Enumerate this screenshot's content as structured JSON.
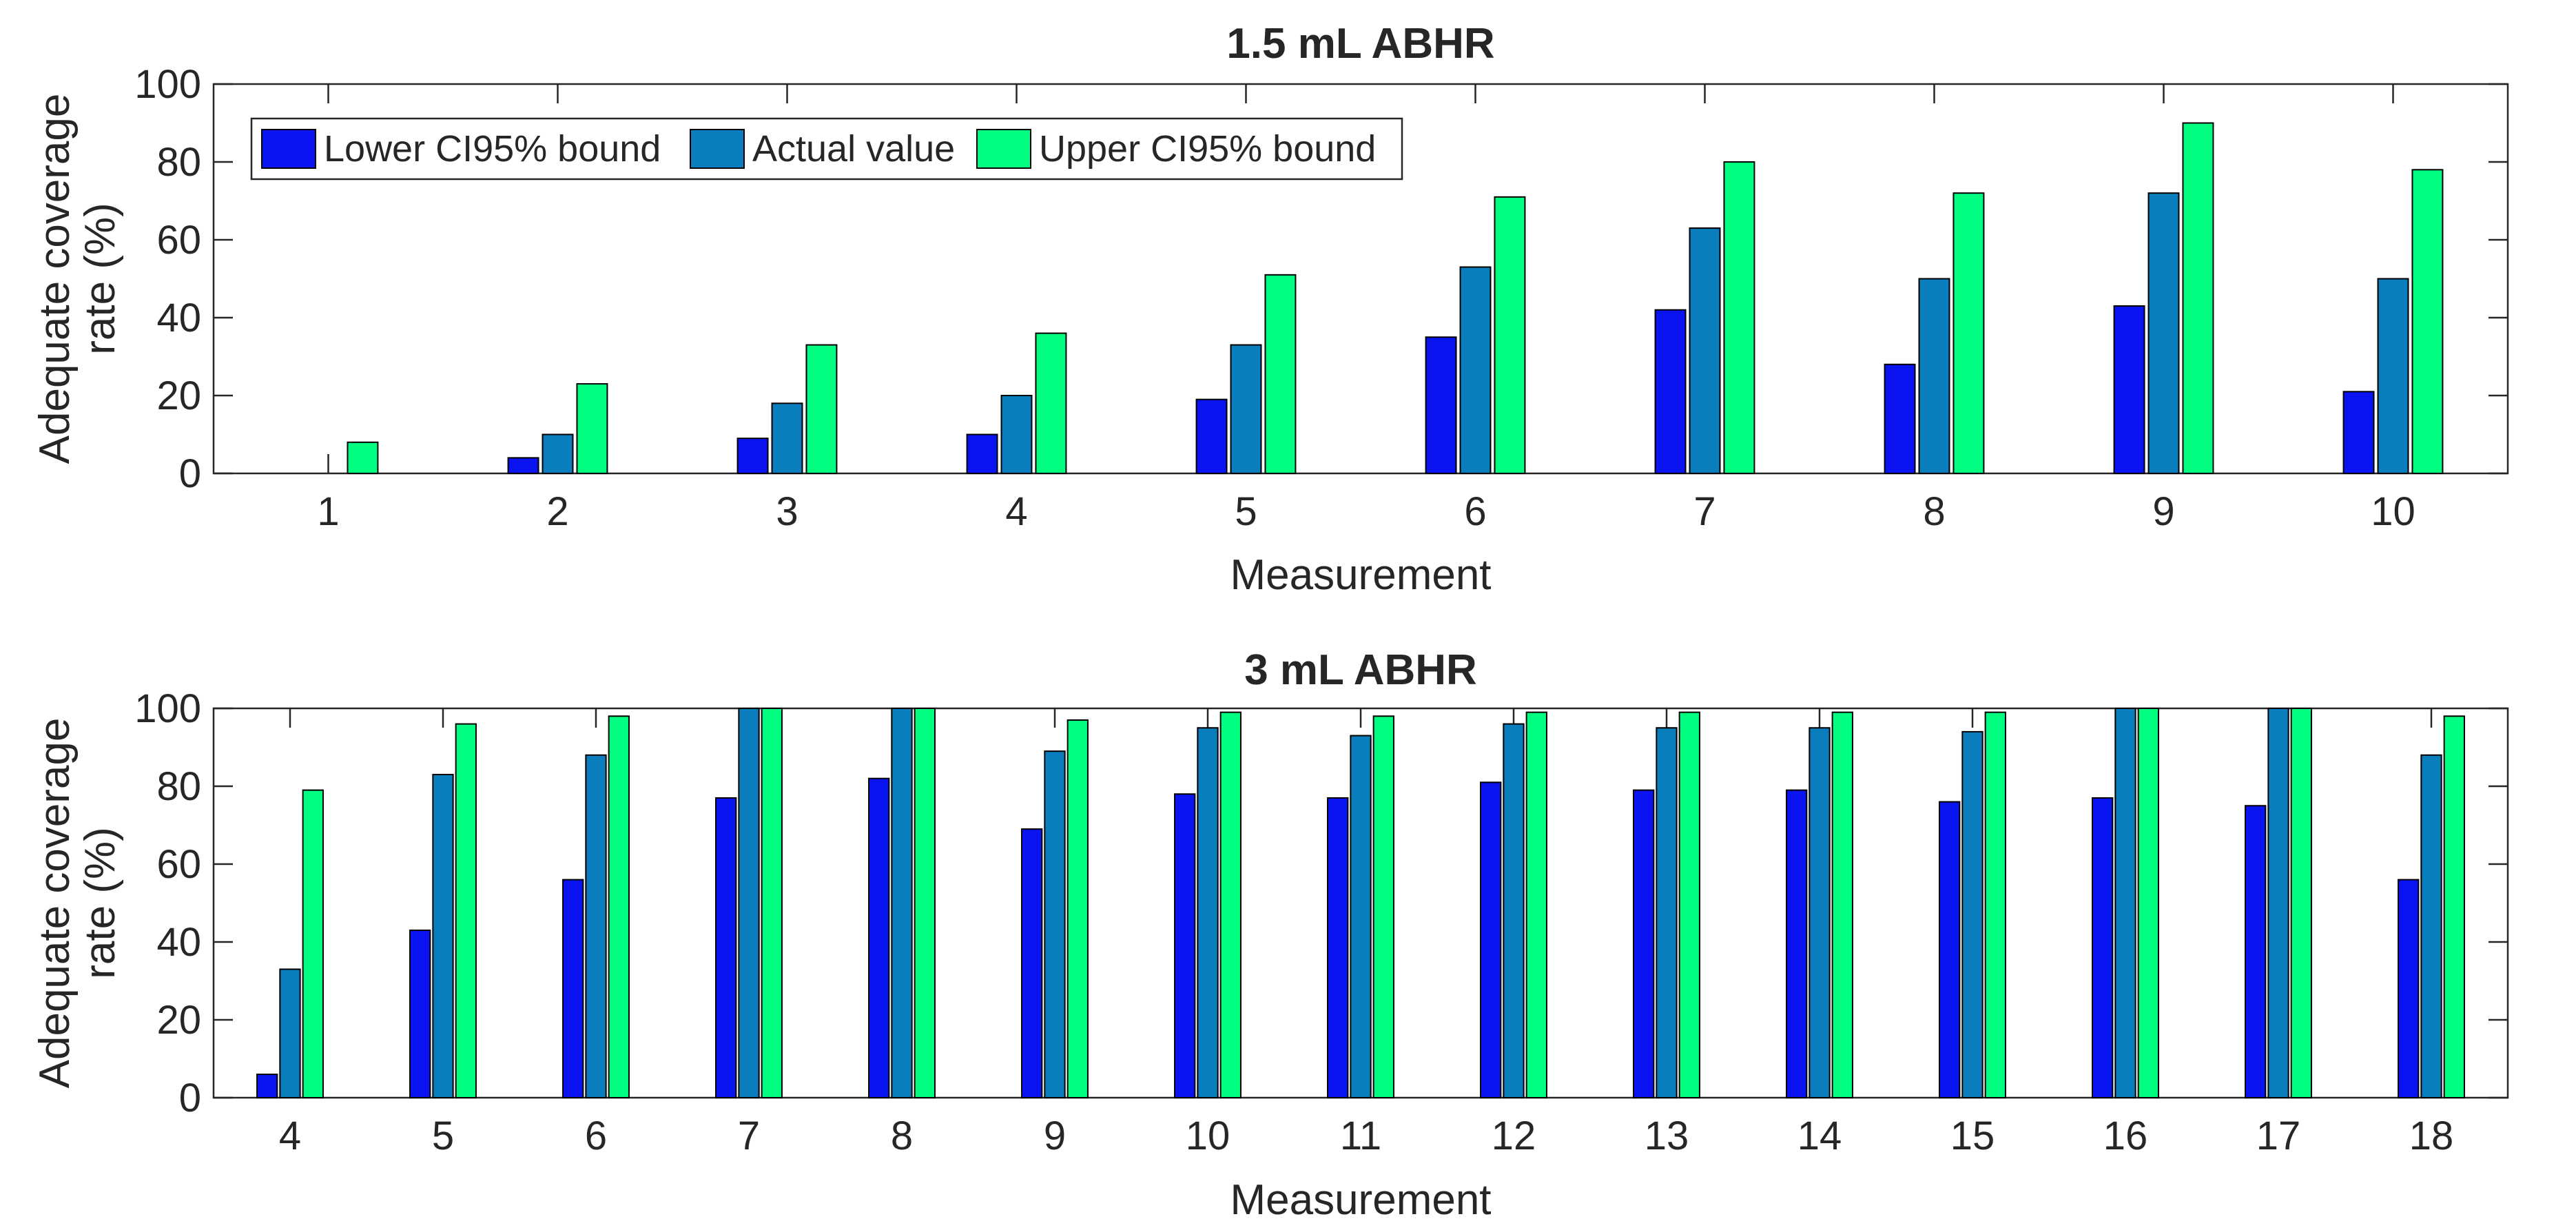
{
  "colors": {
    "lower": "#0a14f0",
    "actual": "#0a7dbd",
    "upper": "#00ff80",
    "axis": "#262626",
    "bar_edge": "#000000"
  },
  "legend": {
    "lower_label": "Lower CI95% bound",
    "actual_label": "Actual value",
    "upper_label": "Upper CI95% bound",
    "placement": "top-left"
  },
  "chart_data": [
    {
      "type": "bar",
      "title": "1.5 mL ABHR",
      "xlabel": "Measurement",
      "ylabel": [
        "Adequate coverage",
        "rate (%)"
      ],
      "ylim": [
        0,
        100
      ],
      "yticks": [
        0,
        20,
        40,
        60,
        80,
        100
      ],
      "grid": false,
      "categories": [
        "1",
        "2",
        "3",
        "4",
        "5",
        "6",
        "7",
        "8",
        "9",
        "10"
      ],
      "series": [
        {
          "name": "Lower CI95% bound",
          "values": [
            0,
            4,
            9,
            10,
            19,
            35,
            42,
            28,
            43,
            21
          ]
        },
        {
          "name": "Actual value",
          "values": [
            0,
            10,
            18,
            20,
            33,
            53,
            63,
            50,
            72,
            50
          ]
        },
        {
          "name": "Upper CI95% bound",
          "values": [
            8,
            23,
            33,
            36,
            51,
            71,
            80,
            72,
            90,
            78
          ]
        }
      ]
    },
    {
      "type": "bar",
      "title": "3 mL ABHR",
      "xlabel": "Measurement",
      "ylabel": [
        "Adequate coverage",
        "rate (%)"
      ],
      "ylim": [
        0,
        100
      ],
      "yticks": [
        0,
        20,
        40,
        60,
        80,
        100
      ],
      "grid": false,
      "categories": [
        "4",
        "5",
        "6",
        "7",
        "8",
        "9",
        "10",
        "11",
        "12",
        "13",
        "14",
        "15",
        "16",
        "17",
        "18"
      ],
      "series": [
        {
          "name": "Lower CI95% bound",
          "values": [
            6,
            43,
            56,
            77,
            82,
            69,
            78,
            77,
            81,
            79,
            79,
            76,
            77,
            75,
            56
          ]
        },
        {
          "name": "Actual value",
          "values": [
            33,
            83,
            88,
            100,
            100,
            89,
            95,
            93,
            96,
            95,
            95,
            94,
            100,
            100,
            88
          ]
        },
        {
          "name": "Upper CI95% bound",
          "values": [
            79,
            96,
            98,
            100,
            100,
            97,
            99,
            98,
            99,
            99,
            99,
            99,
            100,
            100,
            98
          ]
        }
      ]
    }
  ]
}
